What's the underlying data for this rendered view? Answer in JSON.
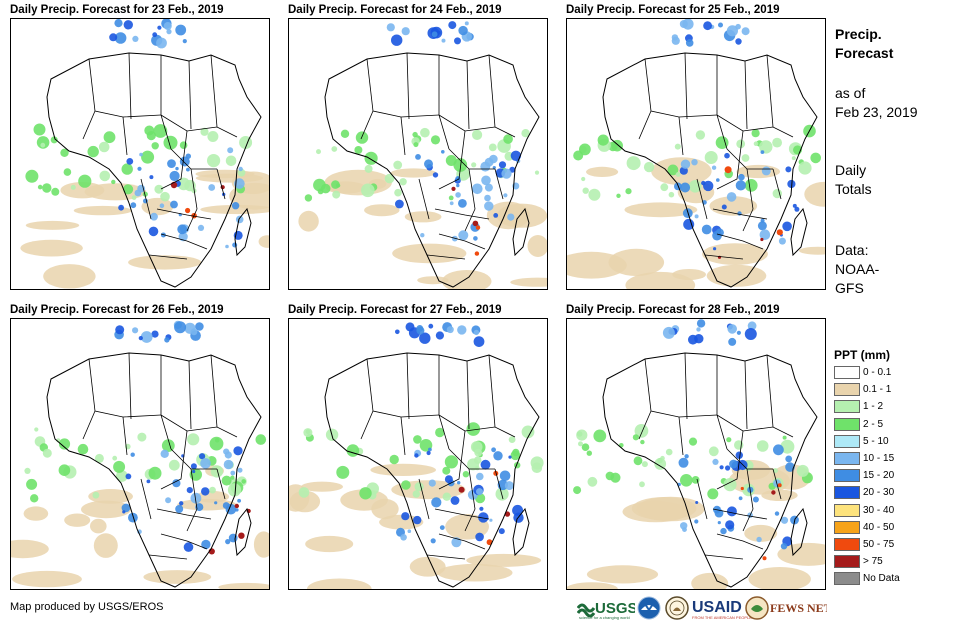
{
  "panels": [
    {
      "title": "Daily Precip. Forecast for 23 Feb., 2019"
    },
    {
      "title": "Daily Precip. Forecast for 24 Feb., 2019"
    },
    {
      "title": "Daily Precip. Forecast for 25 Feb., 2019"
    },
    {
      "title": "Daily Precip. Forecast for 26 Feb., 2019"
    },
    {
      "title": "Daily Precip. Forecast for 27 Feb., 2019"
    },
    {
      "title": "Daily Precip. Forecast for 28 Feb., 2019"
    }
  ],
  "sidebar": {
    "title_line1": "Precip.",
    "title_line2": "Forecast",
    "asof_line1": "as of",
    "asof_line2": "Feb 23, 2019",
    "totals_line1": "Daily",
    "totals_line2": "Totals",
    "data_line1": "Data:",
    "data_line2": "NOAA-",
    "data_line3": "GFS"
  },
  "legend": {
    "title": "PPT (mm)",
    "items": [
      {
        "label": "0 - 0.1",
        "color": "#ffffff"
      },
      {
        "label": "0.1 - 1",
        "color": "#e9d4ad"
      },
      {
        "label": "1 - 2",
        "color": "#b5f0b0"
      },
      {
        "label": "2 - 5",
        "color": "#6fe26a"
      },
      {
        "label": "5 - 10",
        "color": "#aee9f7"
      },
      {
        "label": "10 - 15",
        "color": "#7ab6ef"
      },
      {
        "label": "15 - 20",
        "color": "#3f8de3"
      },
      {
        "label": "20 - 30",
        "color": "#1a56e0"
      },
      {
        "label": "30 - 40",
        "color": "#fde37d"
      },
      {
        "label": "40 - 50",
        "color": "#f6a31a"
      },
      {
        "label": "50 - 75",
        "color": "#f04a0e"
      },
      {
        "label": "> 75",
        "color": "#a51b1b"
      },
      {
        "label": "No Data",
        "color": "#8c8c8c"
      }
    ]
  },
  "credit": "Map produced by USGS/EROS",
  "logos": {
    "usgs": "USGS",
    "usgs_tagline": "science for a changing world",
    "usaid": "USAID",
    "usaid_tagline": "FROM THE AMERICAN PEOPLE",
    "fewsnet": "FEWS NET"
  }
}
